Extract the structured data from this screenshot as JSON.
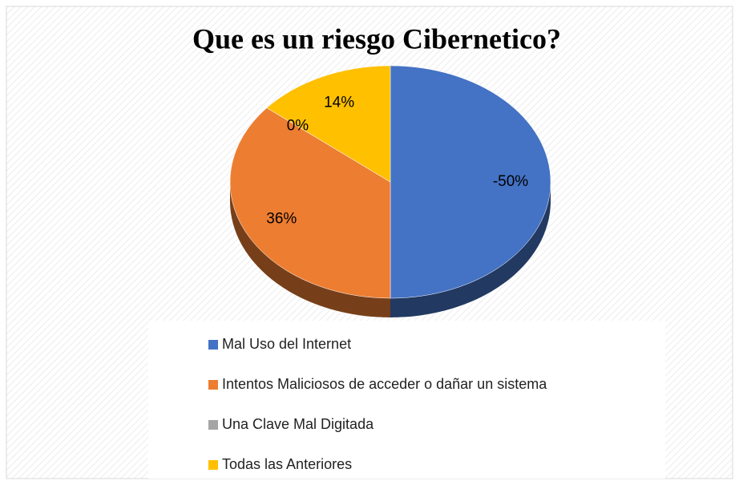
{
  "chart_data": {
    "type": "pie",
    "title": "Que es un riesgo Cibernetico?",
    "categories": [
      "Mal Uso del Internet",
      "Intentos Maliciosos de acceder o dañar un sistema",
      "Una Clave Mal Digitada",
      "Todas las Anteriores"
    ],
    "values": [
      -50,
      36,
      0,
      14
    ],
    "value_labels": [
      "-50%",
      "36%",
      "0%",
      "14%"
    ],
    "colors": [
      "#4472c4",
      "#ed7d31",
      "#a5a5a5",
      "#ffc000"
    ]
  }
}
